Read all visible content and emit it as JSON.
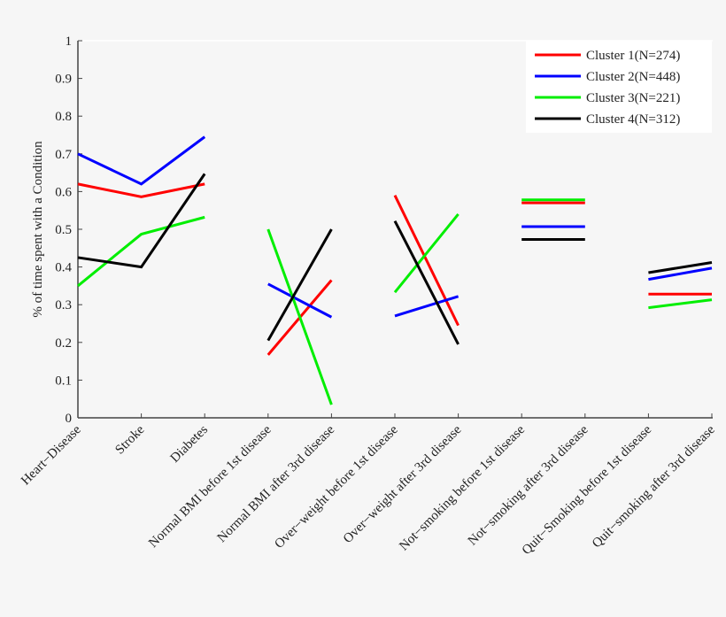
{
  "chart_data": {
    "type": "line",
    "title": "",
    "xlabel": "",
    "ylabel": "% of time spent with a Condition",
    "ylim": [
      0,
      1
    ],
    "yticks": [
      "0",
      "0.1",
      "0.2",
      "0.3",
      "0.4",
      "0.5",
      "0.6",
      "0.7",
      "0.8",
      "0.9",
      "1"
    ],
    "categories": [
      "Heart−Disease",
      "Stroke",
      "Diabetes",
      "Normal BMI before 1st disease",
      "Normal BMI after 3rd disease",
      "Over−weight before 1st disease",
      "Over−weight after 3rd disease",
      "Not−smoking before 1st disease",
      "Not−smoking after 3rd disease",
      "Quit−Smoking before 1st disease",
      "Quit−smoking after 3rd disease"
    ],
    "segment_groups": [
      [
        0,
        1,
        2
      ],
      [
        3,
        4
      ],
      [
        5,
        6
      ],
      [
        7,
        8
      ],
      [
        9,
        10
      ]
    ],
    "grid": false,
    "legend_position": "top-right",
    "series": [
      {
        "name": "Cluster 1(N=274)",
        "color": "#ff0000",
        "values": [
          0.62,
          0.586,
          0.62,
          0.167,
          0.365,
          0.59,
          0.245,
          0.57,
          0.57,
          0.328,
          0.328
        ]
      },
      {
        "name": "Cluster 2(N=448)",
        "color": "#0000ff",
        "values": [
          0.7,
          0.62,
          0.745,
          0.355,
          0.267,
          0.27,
          0.322,
          0.507,
          0.507,
          0.367,
          0.397
        ]
      },
      {
        "name": "Cluster 3(N=221)",
        "color": "#00ee00",
        "values": [
          0.35,
          0.487,
          0.532,
          0.5,
          0.035,
          0.333,
          0.54,
          0.578,
          0.578,
          0.292,
          0.313
        ]
      },
      {
        "name": "Cluster 4(N=312)",
        "color": "#000000",
        "values": [
          0.425,
          0.4,
          0.647,
          0.205,
          0.5,
          0.522,
          0.195,
          0.473,
          0.473,
          0.385,
          0.412
        ]
      }
    ]
  }
}
